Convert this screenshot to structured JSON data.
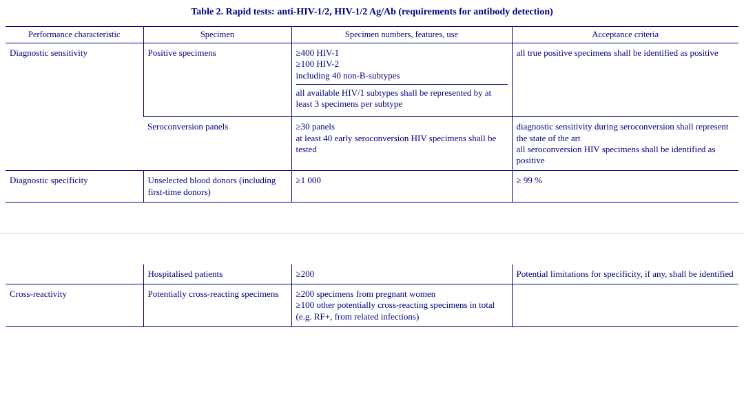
{
  "title": "Table 2. Rapid tests: anti-HIV-1/2, HIV-1/2 Ag/Ab (requirements for antibody detection)",
  "headers": {
    "c1": "Performance characteristic",
    "c2": "Specimen",
    "c3": "Specimen numbers, features, use",
    "c4": "Acceptance criteria"
  },
  "r1": {
    "char": "Diagnostic sensitivity",
    "spec": "Positive specimens",
    "num_a": "≥400 HIV-1\n≥100 HIV-2\nincluding 40 non-B-subtypes",
    "num_b": "all available HIV/1 subtypes shall be represented by at least 3 specimens per subtype",
    "acc": "all true positive specimens shall be identified as positive"
  },
  "r2": {
    "spec": "Seroconversion panels",
    "num": "≥30 panels\nat least 40 early seroconversion HIV specimens shall be tested",
    "acc": "diagnostic sensitivity during seroconversion shall represent the state of the art\nall seroconversion HIV specimens shall be identified as positive"
  },
  "r3": {
    "char": "Diagnostic specificity",
    "spec": "Unselected blood donors (including first-time donors)",
    "num": "≥1 000",
    "acc": "≥ 99 %"
  },
  "r4": {
    "spec": "Hospitalised patients",
    "num": "≥200",
    "acc": "Potential limitations for specificity, if any, shall be identified"
  },
  "r5": {
    "char": "Cross-reactivity",
    "spec": "Potentially cross-reacting specimens",
    "num": "≥200 specimens from pregnant women\n≥100 other potentially cross-reacting specimens in total (e.g. RF+, from related infections)"
  }
}
